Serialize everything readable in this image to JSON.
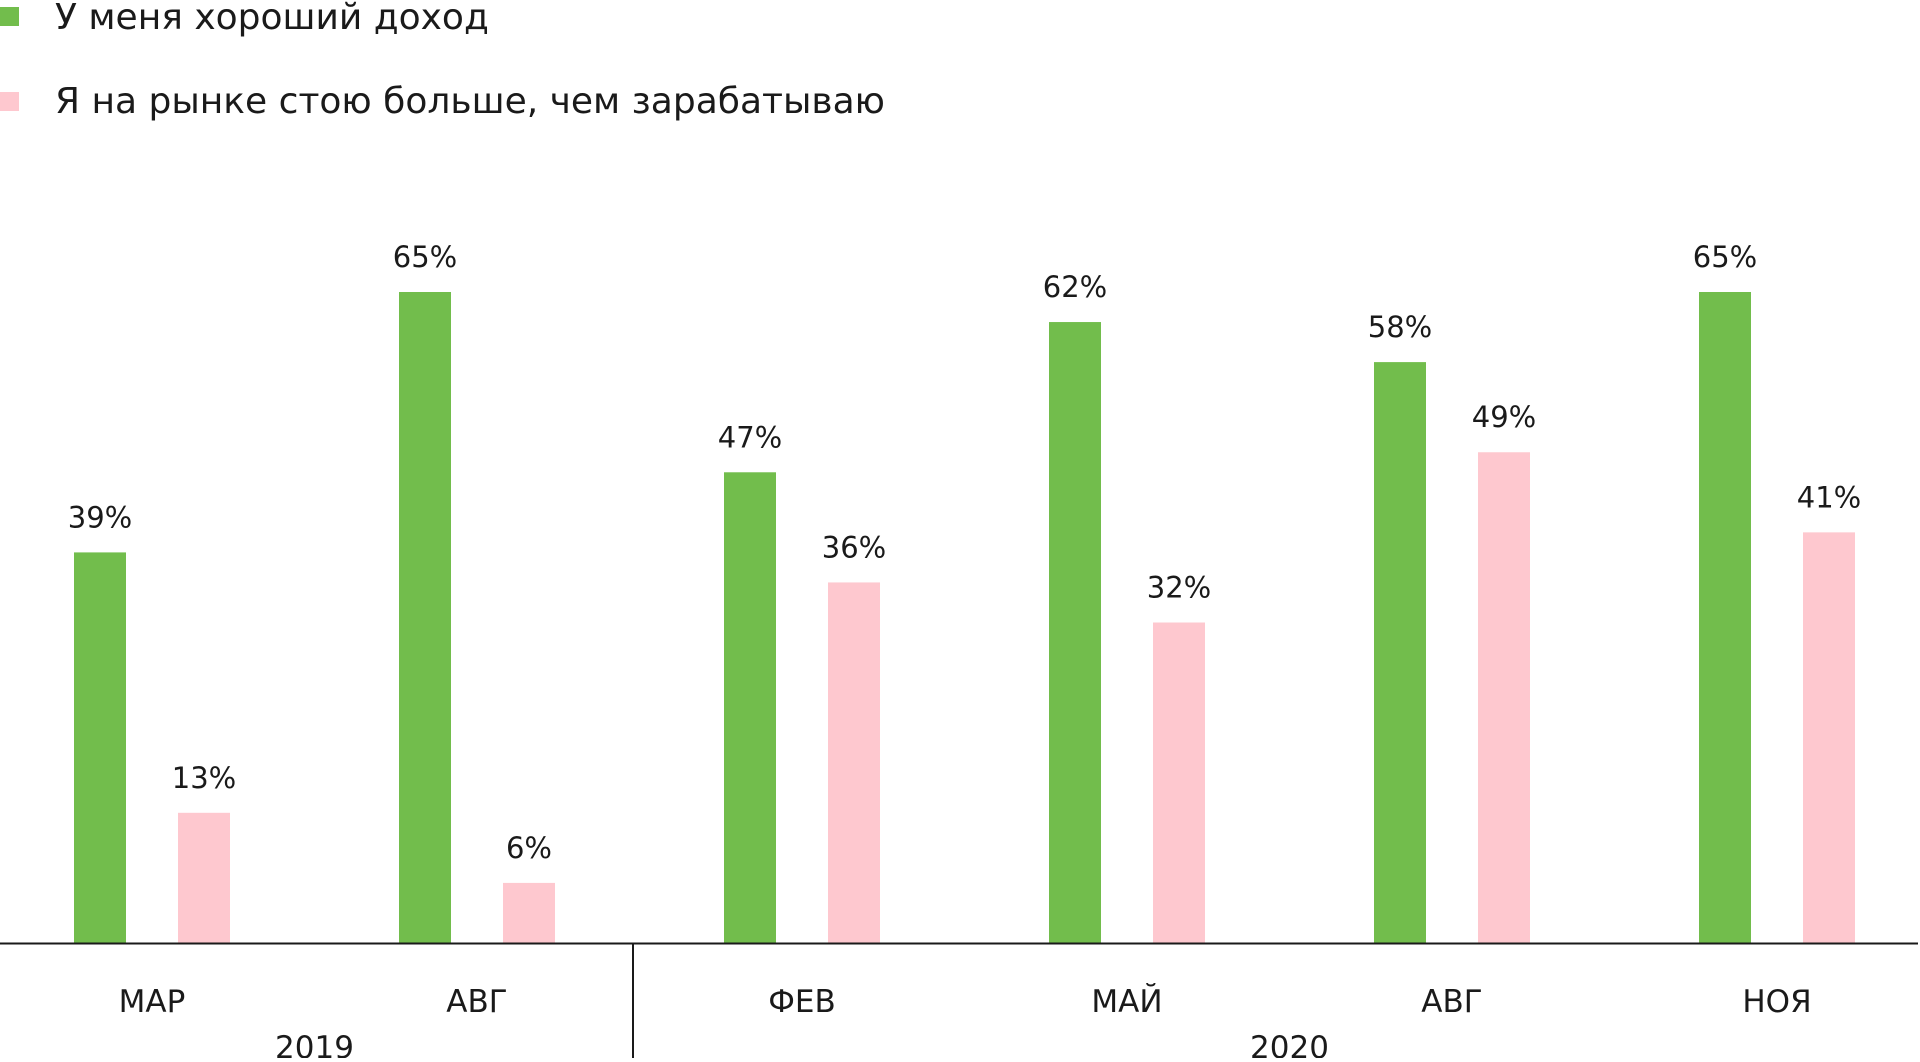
{
  "chart_data": {
    "type": "bar",
    "title": "",
    "xlabel": "",
    "ylabel": "",
    "ylim": [
      0,
      65
    ],
    "grid": false,
    "legend_position": "top-left",
    "categories": [
      "МАР",
      "АВГ",
      "ФЕВ",
      "МАЙ",
      "АВГ",
      "НОЯ"
    ],
    "groups": [
      {
        "label": "2019",
        "start": 0,
        "end": 1
      },
      {
        "label": "2020",
        "start": 2,
        "end": 5
      }
    ],
    "series": [
      {
        "name": "У меня хороший доход",
        "color": "#72bd4c",
        "values": [
          39,
          65,
          47,
          62,
          58,
          65
        ],
        "labels": [
          "39%",
          "65%",
          "47%",
          "62%",
          "58%",
          "65%"
        ]
      },
      {
        "name": "Я на рынке стою больше, чем зарабатываю",
        "color": "#fec8cf",
        "values": [
          13,
          6,
          36,
          32,
          49,
          41
        ],
        "labels": [
          "13%",
          "6%",
          "36%",
          "32%",
          "49%",
          "41%"
        ]
      }
    ]
  },
  "colors": {
    "axis": "#1a1a1a",
    "text": "#1a1a1a"
  }
}
